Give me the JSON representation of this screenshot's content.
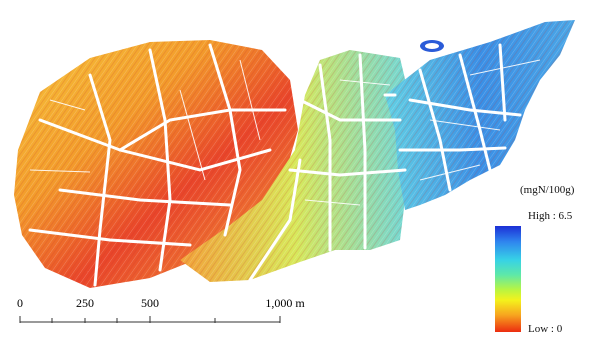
{
  "legend": {
    "unit": "(mgN/100g)",
    "high_label": "High : 6.5",
    "low_label": "Low : 0",
    "colors": [
      "#1c2fd6",
      "#2f86ef",
      "#37d2e6",
      "#5ee8a9",
      "#b8f542",
      "#f4f21c",
      "#f7a51f",
      "#ec2c10"
    ]
  },
  "scalebar": {
    "ticks": [
      "0",
      "250",
      "500",
      "1,000 m"
    ]
  },
  "map": {
    "palette_warm": [
      "#e8342a",
      "#f26b22",
      "#f6a23a",
      "#f3d43a",
      "#f7e85c"
    ],
    "palette_cool": [
      "#2a5bd8",
      "#3a8ee8",
      "#47c4e8",
      "#7de0d4",
      "#a9ec9a"
    ]
  }
}
